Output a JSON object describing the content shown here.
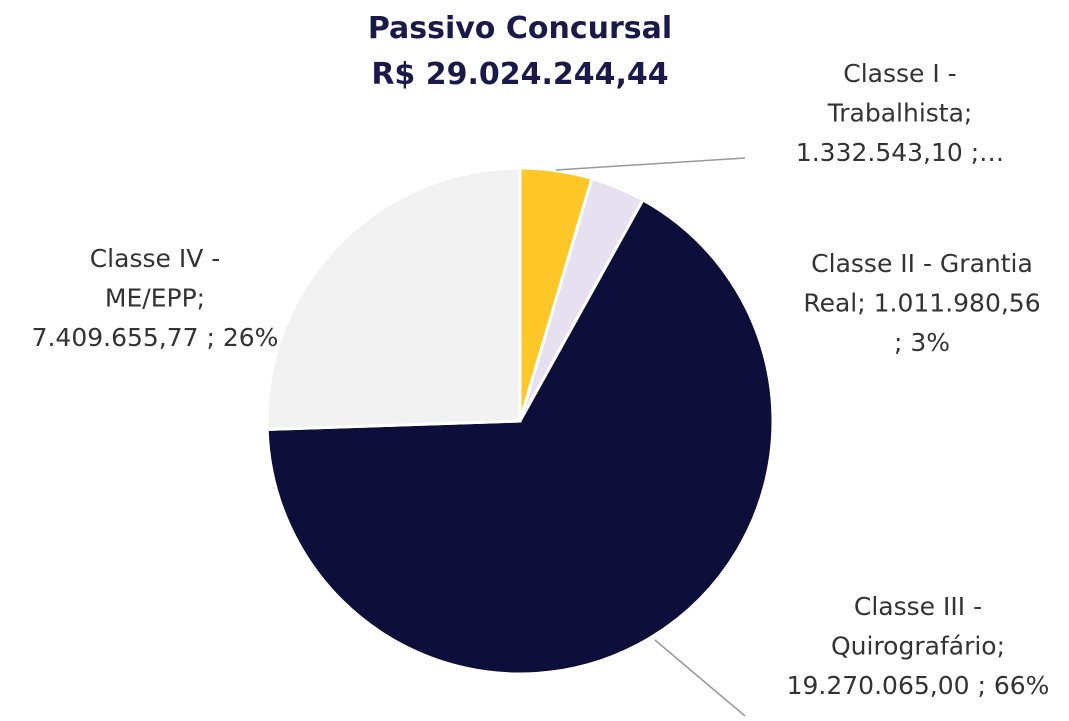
{
  "chart_data": {
    "type": "pie",
    "title": "Passivo Concursal",
    "subtitle": "R$ 29.024.244,44",
    "values": [
      1332543.1,
      1011980.56,
      19270065.0,
      7409655.77
    ],
    "value_labels": [
      "Classe I -\nTrabalhista;\n1.332.543,10 ;…",
      "Classe II - Grantia\nReal;  1.011.980,56\n; 3%",
      "Classe III -\nQuirografário;\n19.270.065,00 ; 66%",
      "Classe IV -\nME/EPP;\n7.409.655,77 ; 26%"
    ],
    "colors": [
      "#FFC828",
      "#E6E0F0",
      "#0E0E3A",
      "#F2F2F2"
    ]
  }
}
